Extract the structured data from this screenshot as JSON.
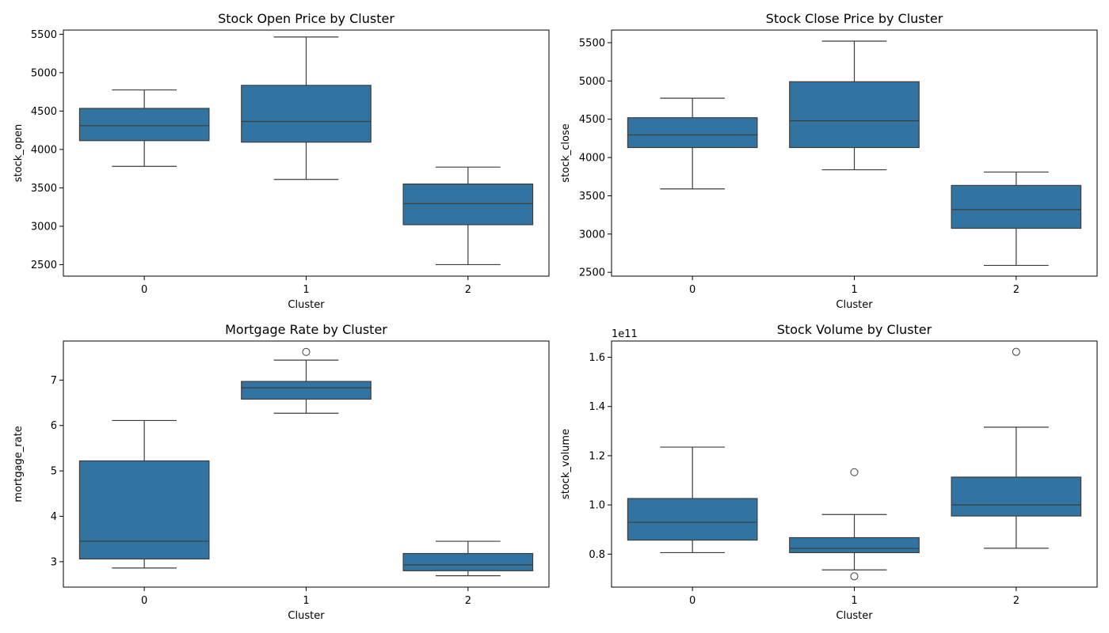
{
  "colors": {
    "box_fill": "#3274a1",
    "line": "#3d3d3d",
    "axis": "#000000",
    "background": "#ffffff"
  },
  "chart_data": [
    {
      "type": "box",
      "title": "Stock Open Price by Cluster",
      "xlabel": "Cluster",
      "ylabel": "stock_open",
      "categories": [
        "0",
        "1",
        "2"
      ],
      "ylim": [
        2350,
        5555
      ],
      "yticks": [
        2500,
        3000,
        3500,
        4000,
        4500,
        5000,
        5500
      ],
      "boxes": [
        {
          "category": "0",
          "whisker_low": 3780,
          "q1": 4115,
          "median": 4310,
          "q3": 4535,
          "whisker_high": 4775,
          "outliers": []
        },
        {
          "category": "1",
          "whisker_low": 3610,
          "q1": 4095,
          "median": 4365,
          "q3": 4835,
          "whisker_high": 5465,
          "outliers": []
        },
        {
          "category": "2",
          "whisker_low": 2500,
          "q1": 3020,
          "median": 3295,
          "q3": 3550,
          "whisker_high": 3770,
          "outliers": []
        }
      ]
    },
    {
      "type": "box",
      "title": "Stock Close Price by Cluster",
      "xlabel": "Cluster",
      "ylabel": "stock_close",
      "categories": [
        "0",
        "1",
        "2"
      ],
      "ylim": [
        2450,
        5665
      ],
      "yticks": [
        2500,
        3000,
        3500,
        4000,
        4500,
        5000,
        5500
      ],
      "boxes": [
        {
          "category": "0",
          "whisker_low": 3590,
          "q1": 4130,
          "median": 4295,
          "q3": 4520,
          "whisker_high": 4775,
          "outliers": []
        },
        {
          "category": "1",
          "whisker_low": 3840,
          "q1": 4130,
          "median": 4480,
          "q3": 4990,
          "whisker_high": 5520,
          "outliers": []
        },
        {
          "category": "2",
          "whisker_low": 2590,
          "q1": 3075,
          "median": 3320,
          "q3": 3635,
          "whisker_high": 3810,
          "outliers": []
        }
      ]
    },
    {
      "type": "box",
      "title": "Mortgage Rate by Cluster",
      "xlabel": "Cluster",
      "ylabel": "mortgage_rate",
      "categories": [
        "0",
        "1",
        "2"
      ],
      "ylim": [
        2.44,
        7.86
      ],
      "yticks": [
        3,
        4,
        5,
        6,
        7
      ],
      "boxes": [
        {
          "category": "0",
          "whisker_low": 2.86,
          "q1": 3.06,
          "median": 3.45,
          "q3": 5.22,
          "whisker_high": 6.11,
          "outliers": []
        },
        {
          "category": "1",
          "whisker_low": 6.27,
          "q1": 6.58,
          "median": 6.83,
          "q3": 6.97,
          "whisker_high": 7.44,
          "outliers": [
            7.62
          ]
        },
        {
          "category": "2",
          "whisker_low": 2.69,
          "q1": 2.8,
          "median": 2.93,
          "q3": 3.18,
          "whisker_high": 3.45,
          "outliers": []
        }
      ]
    },
    {
      "type": "box",
      "title": "Stock Volume by Cluster",
      "xlabel": "Cluster",
      "ylabel": "stock_volume",
      "offset_text": "1e11",
      "categories": [
        "0",
        "1",
        "2"
      ],
      "ylim": [
        0.666,
        1.666
      ],
      "yticks": [
        0.8,
        1.0,
        1.2,
        1.4,
        1.6
      ],
      "ytick_labels": [
        "0.8",
        "1.0",
        "1.2",
        "1.4",
        "1.6"
      ],
      "boxes": [
        {
          "category": "0",
          "whisker_low": 0.806,
          "q1": 0.857,
          "median": 0.929,
          "q3": 1.026,
          "whisker_high": 1.235,
          "outliers": []
        },
        {
          "category": "1",
          "whisker_low": 0.736,
          "q1": 0.806,
          "median": 0.823,
          "q3": 0.867,
          "whisker_high": 0.961,
          "outliers": [
            1.133,
            0.71
          ]
        },
        {
          "category": "2",
          "whisker_low": 0.824,
          "q1": 0.955,
          "median": 1.0,
          "q3": 1.113,
          "whisker_high": 1.316,
          "outliers": [
            1.622
          ]
        }
      ]
    }
  ]
}
